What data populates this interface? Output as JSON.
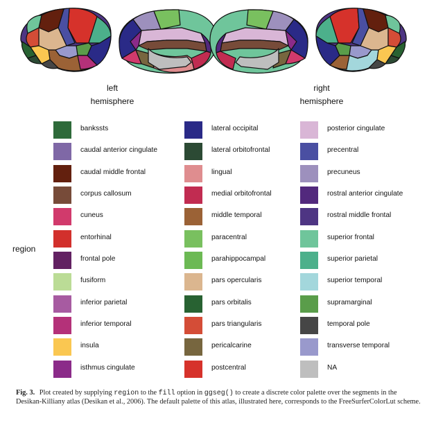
{
  "hemispheres": {
    "left": {
      "line1": "left",
      "line2": "hemisphere"
    },
    "right": {
      "line1": "right",
      "line2": "hemisphere"
    }
  },
  "legend": {
    "title": "region",
    "columns": [
      [
        {
          "label": "bankssts",
          "color": "#2e6a3a"
        },
        {
          "label": "caudal anterior cingulate",
          "color": "#7f68a6"
        },
        {
          "label": "caudal middle frontal",
          "color": "#63200e"
        },
        {
          "label": "corpus callosum",
          "color": "#774b39"
        },
        {
          "label": "cuneus",
          "color": "#d13a6c"
        },
        {
          "label": "entorhinal",
          "color": "#d2302c"
        },
        {
          "label": "frontal pole",
          "color": "#622162"
        },
        {
          "label": "fusiform",
          "color": "#bbdc96"
        },
        {
          "label": "inferior parietal",
          "color": "#a75ba1"
        },
        {
          "label": "inferior temporal",
          "color": "#b43179"
        },
        {
          "label": "insula",
          "color": "#fac751"
        },
        {
          "label": "isthmus cingulate",
          "color": "#8b2b89"
        }
      ],
      [
        {
          "label": "lateral occipital",
          "color": "#2a2a87"
        },
        {
          "label": "lateral orbitofrontal",
          "color": "#2c4a34"
        },
        {
          "label": "lingual",
          "color": "#df8d8f"
        },
        {
          "label": "medial orbitofrontal",
          "color": "#c12c51"
        },
        {
          "label": "middle temporal",
          "color": "#9b6236"
        },
        {
          "label": "paracentral",
          "color": "#79c05f"
        },
        {
          "label": "parahippocampal",
          "color": "#6cb954"
        },
        {
          "label": "pars opercularis",
          "color": "#dbb68f"
        },
        {
          "label": "pars orbitalis",
          "color": "#286232"
        },
        {
          "label": "pars triangularis",
          "color": "#d44d37"
        },
        {
          "label": "pericalcarine",
          "color": "#77663f"
        },
        {
          "label": "postcentral",
          "color": "#d6322b"
        }
      ],
      [
        {
          "label": "posterior cingulate",
          "color": "#d9b6d6"
        },
        {
          "label": "precentral",
          "color": "#4a4fa2"
        },
        {
          "label": "precuneus",
          "color": "#9d90bd"
        },
        {
          "label": "rostral anterior cingulate",
          "color": "#52297d"
        },
        {
          "label": "rostral middle frontal",
          "color": "#4e3583"
        },
        {
          "label": "superior frontal",
          "color": "#6fc59b"
        },
        {
          "label": "superior parietal",
          "color": "#4cb08b"
        },
        {
          "label": "superior temporal",
          "color": "#a3d7dc"
        },
        {
          "label": "supramarginal",
          "color": "#5a9d4a"
        },
        {
          "label": "temporal pole",
          "color": "#464646"
        },
        {
          "label": "transverse temporal",
          "color": "#9999cc"
        },
        {
          "label": "NA",
          "color": "#bebebe"
        }
      ]
    ]
  },
  "caption": {
    "fig_label": "Fig. 3.",
    "part1": "Plot created by supplying",
    "code1": "region",
    "part2": "to the",
    "code2": "fill",
    "part3": "option in",
    "code3": "ggseg()",
    "part4": "to create a discrete color palette over the segments in the Desikan-Killiany atlas (Desikan et al., 2006). The default palette of this atlas, illustrated here, corresponds to the FreeSurferColorLut scheme."
  }
}
